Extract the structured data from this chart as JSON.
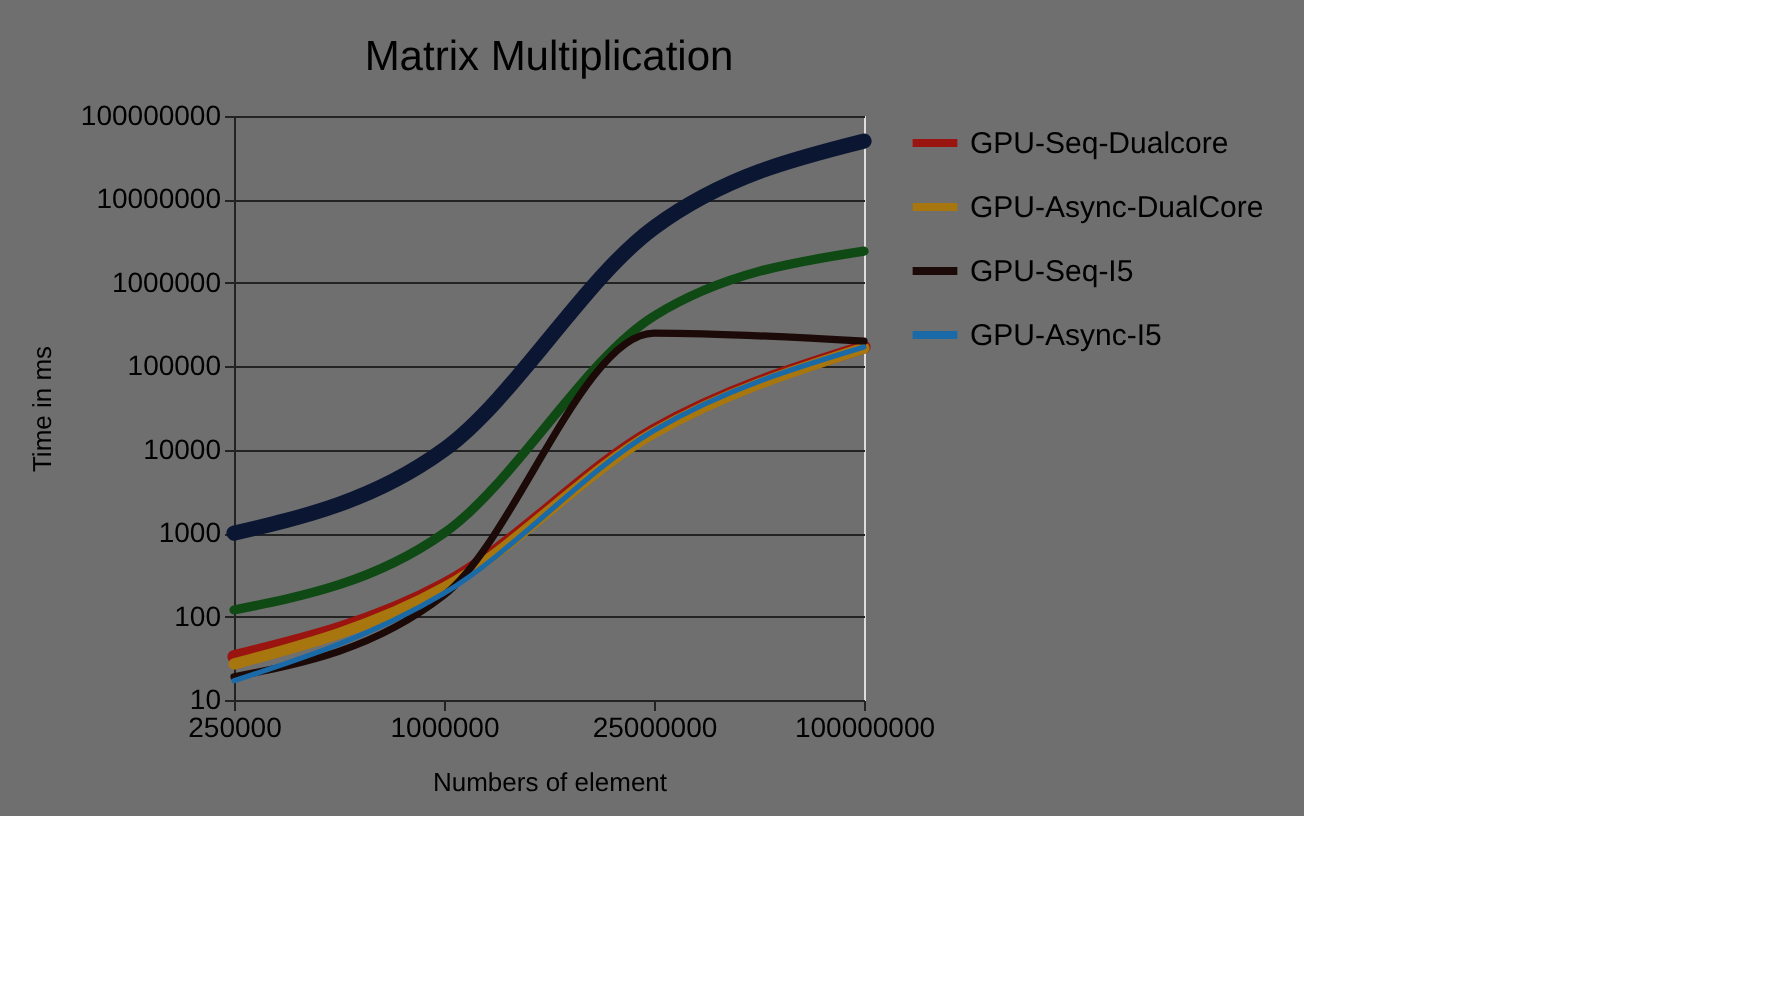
{
  "chart_data": {
    "type": "line",
    "title": "Matrix Multiplication",
    "xlabel": "Numbers of element",
    "ylabel": "Time in ms",
    "categories": [
      "250000",
      "1000000",
      "25000000",
      "100000000"
    ],
    "series": [
      {
        "color": "#0b1633",
        "values": [
          1000,
          10000,
          4600000,
          50000000
        ]
      },
      {
        "name": "GPU-Seq-Dualcore",
        "color": "#9a1410",
        "values": [
          33,
          240,
          17000,
          170000
        ]
      },
      {
        "name": "GPU-Async-DualCore",
        "color": "#a8760e",
        "values": [
          27,
          220,
          16000,
          165000
        ]
      },
      {
        "color": "#0f4a14",
        "values": [
          120,
          1000,
          400000,
          2400000
        ]
      },
      {
        "name": "GPU-Seq-I5",
        "color": "#1c0a08",
        "values": [
          19,
          180,
          250000,
          200000
        ]
      },
      {
        "name": "GPU-Async-I5",
        "color": "#1b6aa8",
        "values": [
          17,
          190,
          17000,
          170000
        ]
      }
    ],
    "log": "y",
    "ylim": [
      10,
      100000000
    ],
    "yticks": [
      10,
      100,
      1000,
      10000,
      100000,
      1000000,
      10000000,
      100000000
    ],
    "grid": "y",
    "legend": "right",
    "marker": "none",
    "line_style": "solid"
  }
}
